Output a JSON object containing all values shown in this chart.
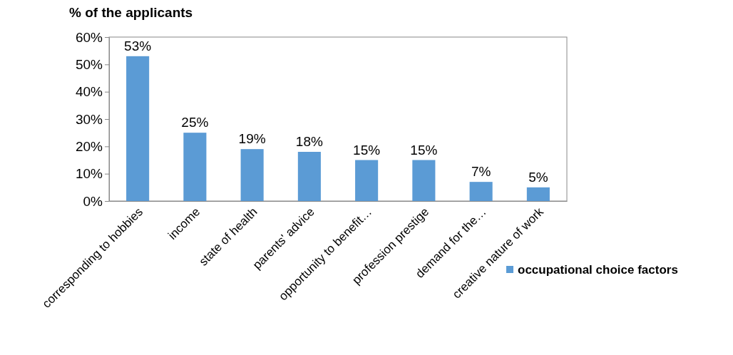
{
  "chart_data": {
    "type": "bar",
    "title": "% of the applicants",
    "categories": [
      "corresponding to hobbies",
      "income",
      "state of health",
      "parents' advice",
      "opportunity to benefit…",
      "profession prestige",
      "demand for the…",
      "creative nature of work"
    ],
    "series": [
      {
        "name": "occupational choice factors",
        "color": "#5b9bd5",
        "values": [
          53,
          25,
          19,
          18,
          15,
          15,
          7,
          5
        ],
        "value_labels": [
          "53%",
          "25%",
          "19%",
          "18%",
          "15%",
          "15%",
          "7%",
          "5%"
        ]
      }
    ],
    "ylim": [
      0,
      60
    ],
    "yticks": [
      {
        "value": 0,
        "label": "0%"
      },
      {
        "value": 10,
        "label": "10%"
      },
      {
        "value": 20,
        "label": "20%"
      },
      {
        "value": 30,
        "label": "30%"
      },
      {
        "value": 40,
        "label": "40%"
      },
      {
        "value": 50,
        "label": "50%"
      },
      {
        "value": 60,
        "label": "60%"
      }
    ],
    "legend": "right",
    "grid": false
  }
}
